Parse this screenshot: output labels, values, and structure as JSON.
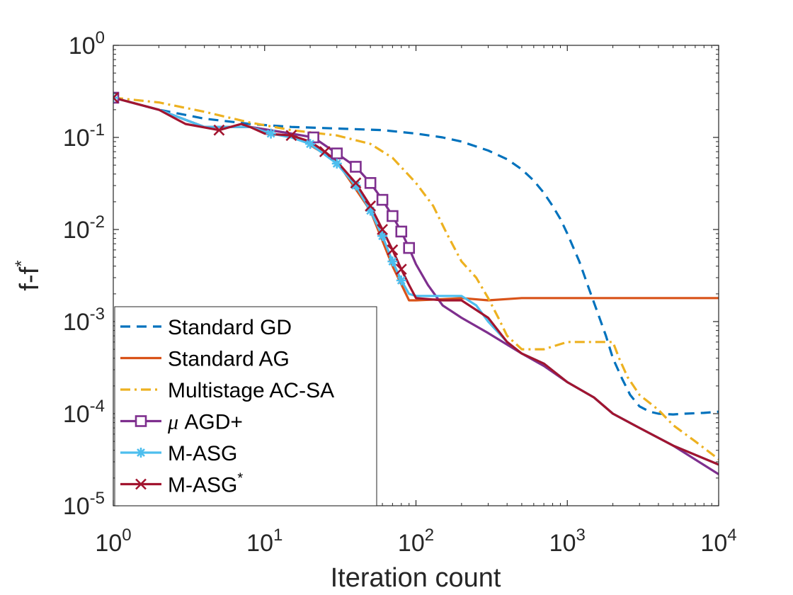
{
  "chart_data": {
    "type": "line",
    "title": "",
    "xlabel": "Iteration count",
    "ylabel_base": "f-f",
    "ylabel_sup": "*",
    "xscale": "log",
    "yscale": "log",
    "xlim": [
      1,
      10000
    ],
    "ylim": [
      1e-05,
      1
    ],
    "grid": false,
    "legend_position": "bottom-left",
    "x_ticks": [
      {
        "base": "10",
        "exp": "0"
      },
      {
        "base": "10",
        "exp": "1"
      },
      {
        "base": "10",
        "exp": "2"
      },
      {
        "base": "10",
        "exp": "3"
      },
      {
        "base": "10",
        "exp": "4"
      }
    ],
    "y_ticks": [
      {
        "base": "10",
        "exp": "-5"
      },
      {
        "base": "10",
        "exp": "-4"
      },
      {
        "base": "10",
        "exp": "-3"
      },
      {
        "base": "10",
        "exp": "-2"
      },
      {
        "base": "10",
        "exp": "-1"
      },
      {
        "base": "10",
        "exp": "0"
      }
    ],
    "series": [
      {
        "name": "Standard GD",
        "color": "#0072BD",
        "style": "dashed",
        "marker": "none",
        "x": [
          1,
          2,
          4,
          8,
          15,
          30,
          60,
          100,
          150,
          200,
          300,
          400,
          500,
          600,
          700,
          800,
          900,
          1000,
          1200,
          1400,
          1600,
          1800,
          2000,
          2300,
          2600,
          3000,
          3500,
          4000,
          5000,
          6000,
          8000,
          10000
        ],
        "y": [
          0.27,
          0.2,
          0.16,
          0.14,
          0.13,
          0.125,
          0.12,
          0.11,
          0.1,
          0.09,
          0.072,
          0.058,
          0.045,
          0.034,
          0.025,
          0.018,
          0.013,
          0.009,
          0.0045,
          0.0022,
          0.0012,
          0.0007,
          0.0004,
          0.00024,
          0.00016,
          0.00012,
          0.000105,
          0.0001,
          9.8e-05,
          0.0001,
          0.000102,
          0.000105
        ]
      },
      {
        "name": "Standard AG",
        "color": "#D95319",
        "style": "solid",
        "marker": "none",
        "x": [
          1,
          2,
          4,
          8,
          15,
          30,
          50,
          70,
          90,
          100,
          150,
          200,
          300,
          500,
          1000,
          2000,
          5000,
          10000
        ],
        "y": [
          0.27,
          0.2,
          0.13,
          0.13,
          0.11,
          0.055,
          0.016,
          0.004,
          0.0017,
          0.0017,
          0.00175,
          0.0018,
          0.0017,
          0.0018,
          0.0018,
          0.0018,
          0.0018,
          0.0018
        ]
      },
      {
        "name": "Multistage AC-SA",
        "color": "#EDB120",
        "style": "dashdot",
        "marker": "none",
        "x": [
          1,
          2,
          4,
          8,
          15,
          30,
          50,
          70,
          100,
          130,
          160,
          200,
          250,
          300,
          350,
          400,
          500,
          700,
          1000,
          1500,
          2000,
          2200,
          2500,
          3000,
          4000,
          5000,
          7000,
          10000
        ],
        "y": [
          0.27,
          0.24,
          0.19,
          0.145,
          0.12,
          0.105,
          0.085,
          0.06,
          0.032,
          0.018,
          0.009,
          0.0045,
          0.003,
          0.0018,
          0.0011,
          0.0007,
          0.0005,
          0.0005,
          0.0006,
          0.0006,
          0.0006,
          0.0004,
          0.00025,
          0.00016,
          0.00011,
          7.5e-05,
          5e-05,
          3.2e-05
        ]
      },
      {
        "name": "μ AGD+",
        "legend_prefix": "μ",
        "legend_rest": " AGD+",
        "color": "#7E2F8E",
        "style": "solid",
        "marker": "square",
        "x": [
          1,
          2,
          4,
          8,
          15,
          21,
          30,
          40,
          50,
          60,
          70,
          80,
          90,
          100,
          120,
          150,
          200,
          300,
          500,
          700,
          1000,
          1500,
          2000,
          3000,
          5000,
          10000
        ],
        "y": [
          0.27,
          0.2,
          0.13,
          0.13,
          0.11,
          0.1,
          0.067,
          0.048,
          0.032,
          0.021,
          0.014,
          0.0095,
          0.0063,
          0.0042,
          0.0025,
          0.0015,
          0.0011,
          0.00075,
          0.00045,
          0.00033,
          0.00022,
          0.00015,
          0.0001,
          7e-05,
          4.5e-05,
          2.2e-05
        ]
      },
      {
        "name": "M-ASG",
        "color": "#4DBEEE",
        "style": "solid",
        "marker": "asterisk",
        "x": [
          1,
          2,
          4,
          8,
          11,
          15,
          20,
          30,
          40,
          50,
          60,
          70,
          80,
          90,
          100,
          150,
          200,
          250,
          300,
          400,
          500,
          700,
          1000,
          1500,
          2000,
          3000,
          5000,
          10000
        ],
        "y": [
          0.27,
          0.2,
          0.13,
          0.13,
          0.11,
          0.1,
          0.085,
          0.052,
          0.03,
          0.016,
          0.0085,
          0.0045,
          0.0028,
          0.002,
          0.0019,
          0.0019,
          0.0019,
          0.0015,
          0.001,
          0.0006,
          0.00045,
          0.00035,
          0.00022,
          0.00015,
          0.0001,
          7e-05,
          4.5e-05,
          2.8e-05
        ]
      },
      {
        "name": "M-ASG*",
        "legend_base": "M-ASG",
        "legend_sup": "*",
        "color": "#A2142F",
        "style": "solid",
        "marker": "x",
        "x": [
          1,
          2,
          3,
          5,
          7,
          8,
          10,
          15,
          20,
          25,
          30,
          40,
          50,
          60,
          70,
          80,
          90,
          100,
          150,
          200,
          300,
          400,
          500,
          700,
          1000,
          1500,
          2000,
          3000,
          5000,
          10000
        ],
        "y": [
          0.27,
          0.2,
          0.14,
          0.12,
          0.14,
          0.13,
          0.11,
          0.105,
          0.09,
          0.07,
          0.055,
          0.032,
          0.018,
          0.01,
          0.006,
          0.0037,
          0.0025,
          0.0018,
          0.0017,
          0.0017,
          0.0011,
          0.0006,
          0.00045,
          0.00035,
          0.00022,
          0.00015,
          0.0001,
          7e-05,
          4.5e-05,
          2.8e-05
        ]
      }
    ]
  }
}
